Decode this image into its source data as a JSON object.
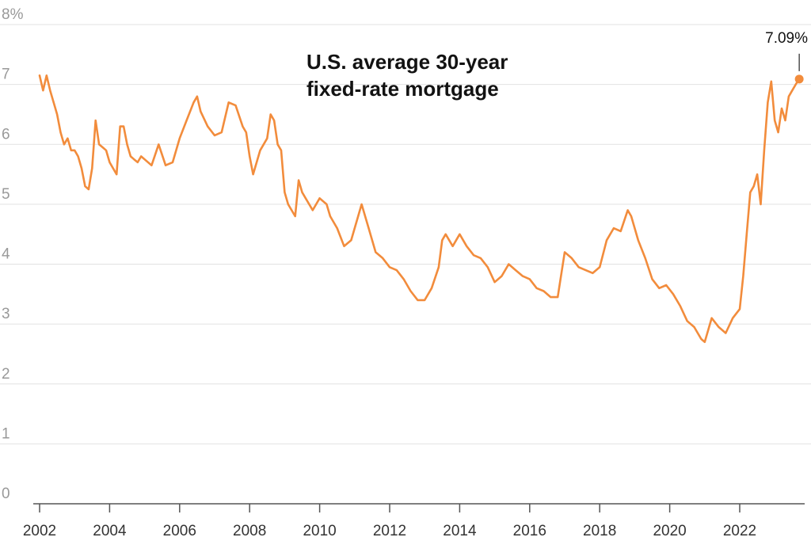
{
  "chart_data": {
    "type": "line",
    "title_lines": [
      "U.S. average 30-year",
      "fixed-rate mortgage"
    ],
    "y_unit": "%",
    "ylim": [
      0,
      8
    ],
    "y_ticks": [
      0,
      1,
      2,
      3,
      4,
      5,
      6,
      7,
      8
    ],
    "y_tick_labels": [
      "0",
      "1",
      "2",
      "3",
      "4",
      "5",
      "6",
      "7",
      "8%"
    ],
    "xlim": [
      2001.9,
      2023.95
    ],
    "x_ticks": [
      2002,
      2004,
      2006,
      2008,
      2010,
      2012,
      2014,
      2016,
      2018,
      2020,
      2022
    ],
    "x_tick_labels": [
      "2002",
      "2004",
      "2006",
      "2008",
      "2010",
      "2012",
      "2014",
      "2016",
      "2018",
      "2020",
      "2022"
    ],
    "grid": true,
    "line_color": "#f28c3c",
    "end_label": "7.09%",
    "series": [
      {
        "x": [
          2002.0,
          2002.1,
          2002.2,
          2002.3,
          2002.4,
          2002.5,
          2002.6,
          2002.7,
          2002.8,
          2002.9,
          2003.0,
          2003.1,
          2003.2,
          2003.3,
          2003.4,
          2003.5,
          2003.6,
          2003.7,
          2003.8,
          2003.9,
          2004.0,
          2004.1,
          2004.2,
          2004.3,
          2004.4,
          2004.5,
          2004.6,
          2004.7,
          2004.8,
          2004.9,
          2005.0,
          2005.2,
          2005.4,
          2005.6,
          2005.8,
          2006.0,
          2006.2,
          2006.4,
          2006.5,
          2006.6,
          2006.8,
          2007.0,
          2007.2,
          2007.4,
          2007.6,
          2007.8,
          2007.9,
          2008.0,
          2008.1,
          2008.3,
          2008.5,
          2008.6,
          2008.7,
          2008.8,
          2008.9,
          2009.0,
          2009.1,
          2009.3,
          2009.4,
          2009.5,
          2009.6,
          2009.8,
          2010.0,
          2010.2,
          2010.3,
          2010.5,
          2010.7,
          2010.9,
          2011.1,
          2011.2,
          2011.4,
          2011.6,
          2011.8,
          2012.0,
          2012.2,
          2012.4,
          2012.6,
          2012.8,
          2013.0,
          2013.2,
          2013.4,
          2013.5,
          2013.6,
          2013.8,
          2014.0,
          2014.2,
          2014.4,
          2014.6,
          2014.8,
          2015.0,
          2015.2,
          2015.4,
          2015.6,
          2015.8,
          2016.0,
          2016.2,
          2016.4,
          2016.6,
          2016.8,
          2017.0,
          2017.2,
          2017.4,
          2017.6,
          2017.8,
          2018.0,
          2018.2,
          2018.4,
          2018.6,
          2018.8,
          2018.9,
          2019.1,
          2019.3,
          2019.5,
          2019.7,
          2019.9,
          2020.1,
          2020.3,
          2020.5,
          2020.7,
          2020.9,
          2021.0,
          2021.2,
          2021.4,
          2021.6,
          2021.8,
          2022.0,
          2022.1,
          2022.2,
          2022.3,
          2022.4,
          2022.5,
          2022.6,
          2022.7,
          2022.8,
          2022.9,
          2023.0,
          2023.1,
          2023.2,
          2023.3,
          2023.4,
          2023.5,
          2023.6,
          2023.7
        ],
        "y": [
          7.15,
          6.9,
          7.15,
          6.9,
          6.7,
          6.5,
          6.2,
          6.0,
          6.1,
          5.9,
          5.9,
          5.8,
          5.6,
          5.3,
          5.25,
          5.6,
          6.4,
          6.0,
          5.95,
          5.9,
          5.7,
          5.6,
          5.5,
          6.3,
          6.3,
          6.0,
          5.8,
          5.75,
          5.7,
          5.8,
          5.75,
          5.65,
          6.0,
          5.65,
          5.7,
          6.1,
          6.4,
          6.7,
          6.8,
          6.55,
          6.3,
          6.15,
          6.2,
          6.7,
          6.65,
          6.3,
          6.2,
          5.8,
          5.5,
          5.9,
          6.1,
          6.5,
          6.4,
          6.0,
          5.9,
          5.2,
          5.0,
          4.8,
          5.4,
          5.2,
          5.1,
          4.9,
          5.1,
          5.0,
          4.8,
          4.6,
          4.3,
          4.4,
          4.8,
          5.0,
          4.6,
          4.2,
          4.1,
          3.95,
          3.9,
          3.75,
          3.55,
          3.4,
          3.4,
          3.6,
          3.95,
          4.4,
          4.5,
          4.3,
          4.5,
          4.3,
          4.15,
          4.1,
          3.95,
          3.7,
          3.8,
          4.0,
          3.9,
          3.8,
          3.75,
          3.6,
          3.55,
          3.45,
          3.45,
          4.2,
          4.1,
          3.95,
          3.9,
          3.85,
          3.95,
          4.4,
          4.6,
          4.55,
          4.9,
          4.8,
          4.4,
          4.1,
          3.75,
          3.6,
          3.65,
          3.5,
          3.3,
          3.05,
          2.95,
          2.75,
          2.7,
          3.1,
          2.95,
          2.85,
          3.1,
          3.25,
          3.8,
          4.5,
          5.2,
          5.3,
          5.5,
          5.0,
          5.9,
          6.7,
          7.05,
          6.4,
          6.2,
          6.6,
          6.4,
          6.8,
          6.9,
          7.0,
          7.09
        ],
        "end_point": [
          2023.7,
          7.09
        ]
      }
    ]
  }
}
